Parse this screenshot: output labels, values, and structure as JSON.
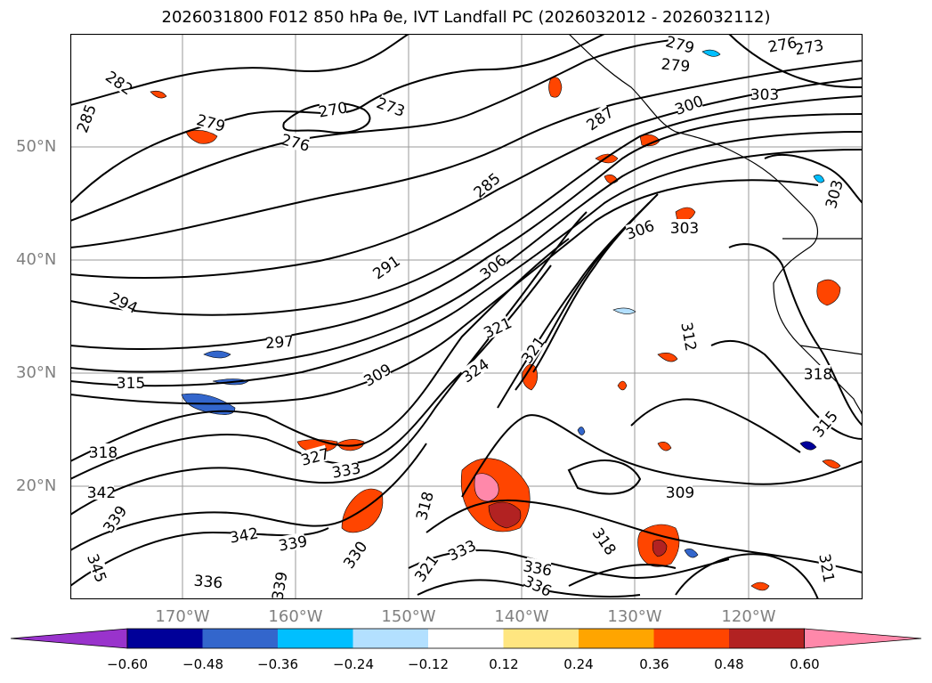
{
  "title": "2026031800 F012 850 hPa θe, IVT Landfall PC (2026032012 - 2026032112)",
  "map": {
    "lat_labels": [
      "50°N",
      "40°N",
      "30°N",
      "20°N"
    ],
    "lon_labels": [
      "170°W",
      "160°W",
      "150°W",
      "140°W",
      "130°W",
      "120°W"
    ],
    "contour_labels": [
      "282",
      "285",
      "279",
      "276",
      "270",
      "273",
      "279",
      "276",
      "273",
      "279",
      "287",
      "300",
      "303",
      "285",
      "291",
      "294",
      "297",
      "306",
      "306",
      "303",
      "315",
      "309",
      "321",
      "324",
      "321",
      "312",
      "318",
      "315",
      "318",
      "327",
      "333",
      "342",
      "339",
      "342",
      "339",
      "330",
      "318",
      "321",
      "333",
      "336",
      "309",
      "318",
      "336",
      "321",
      "345",
      "336",
      "339",
      "303"
    ]
  },
  "colorbar": {
    "ticks": [
      "−0.60",
      "−0.48",
      "−0.36",
      "−0.24",
      "−0.12",
      "0.12",
      "0.24",
      "0.36",
      "0.48",
      "0.60"
    ],
    "colors": [
      "#9933cc",
      "#000099",
      "#3366cc",
      "#00bfff",
      "#b3e0ff",
      "#ffffff",
      "#ffe680",
      "#ffa500",
      "#ff4500",
      "#b22222",
      "#ff88aa"
    ]
  }
}
